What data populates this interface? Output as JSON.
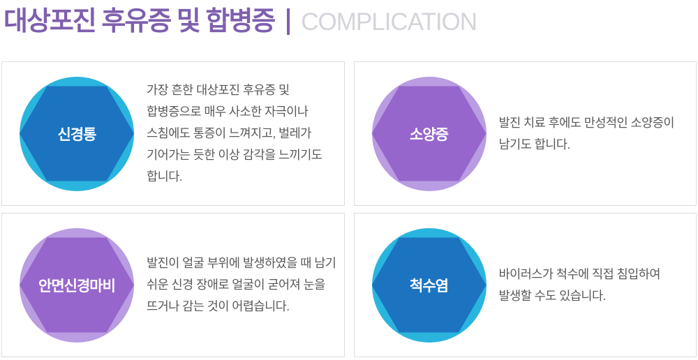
{
  "header": {
    "title_ko": "대상포진 후유증 및 합병증",
    "title_en": "COMPLICATION"
  },
  "colors": {
    "accent_purple": "#7e5fae",
    "title_en_gray": "#d6d3da",
    "blue_circle": "#2ab5de",
    "blue_hexagon": "#1c74c1",
    "purple_circle": "#b99ce2",
    "purple_hexagon": "#9766cc",
    "description_text": "#595959",
    "card_border": "#dcdcdc"
  },
  "cards": [
    {
      "label": "신경통",
      "theme": "blue",
      "description": "가장 흔한 대상포진 후유증 및 합병증으로 매우 사소한 자극이나 스침에도 통증이 느껴지고, 벌레가 기어가는 듯한 이상 감각을 느끼기도 합니다."
    },
    {
      "label": "소양증",
      "theme": "purple",
      "description": "발진 치료 후에도 만성적인 소양증이 남기도 합니다."
    },
    {
      "label": "안면신경마비",
      "theme": "purple",
      "description": "발진이 얼굴 부위에 발생하였을 때 남기 쉬운 신경 장애로 얼굴이 굳어져 눈을 뜨거나 감는 것이 어렵습니다."
    },
    {
      "label": "척수염",
      "theme": "blue",
      "description": "바이러스가 척수에 직접 침입하여 발생할 수도 있습니다."
    }
  ]
}
